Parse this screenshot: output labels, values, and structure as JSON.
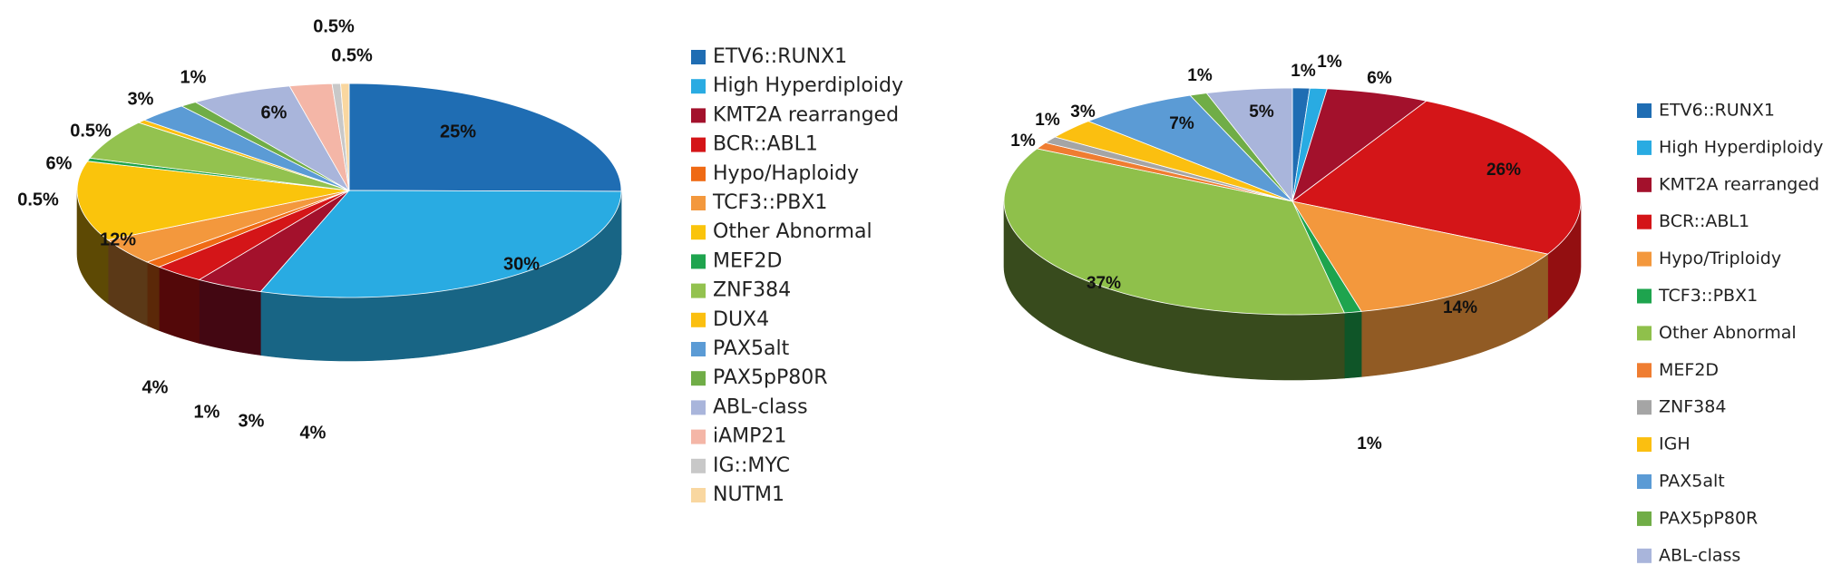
{
  "chart_data": [
    {
      "type": "pie",
      "style": "3d",
      "legend_position": "right",
      "slices": [
        {
          "name": "ETV6::RUNX1",
          "label": "25%",
          "value": 25,
          "color": "#1f6db3"
        },
        {
          "name": "High Hyperdiploidy",
          "label": "30%",
          "value": 30,
          "color": "#29abe2"
        },
        {
          "name": "KMT2A rearranged",
          "label": "4%",
          "value": 4,
          "color": "#a3112c"
        },
        {
          "name": "BCR::ABL1",
          "label": "3%",
          "value": 3,
          "color": "#d41518"
        },
        {
          "name": "Hypo/Haploidy",
          "label": "1%",
          "value": 1,
          "color": "#ef6a14"
        },
        {
          "name": "TCF3::PBX1",
          "label": "4%",
          "value": 4,
          "color": "#f3983d"
        },
        {
          "name": "Other Abnormal",
          "label": "12%",
          "value": 12,
          "color": "#fac40c"
        },
        {
          "name": "MEF2D",
          "label": "0.5%",
          "value": 0.5,
          "color": "#1ea44e"
        },
        {
          "name": "ZNF384",
          "label": "6%",
          "value": 6,
          "color": "#93c24f"
        },
        {
          "name": "DUX4",
          "label": "0.5%",
          "value": 0.5,
          "color": "#fbbf10"
        },
        {
          "name": "PAX5alt",
          "label": "3%",
          "value": 3,
          "color": "#5b9bd5"
        },
        {
          "name": "PAX5pP80R",
          "label": "1%",
          "value": 1,
          "color": "#70ad47"
        },
        {
          "name": "ABL-class",
          "label": "6%",
          "value": 6,
          "color": "#a9b5db"
        },
        {
          "name": "iAMP21",
          "label": "",
          "value": 2.5,
          "color": "#f4b6a7"
        },
        {
          "name": "IG::MYC",
          "label": "0.5%",
          "value": 0.5,
          "color": "#c8c8c8"
        },
        {
          "name": "NUTM1",
          "label": "0.5%",
          "value": 0.5,
          "color": "#f9d7a0"
        }
      ]
    },
    {
      "type": "pie",
      "style": "3d",
      "legend_position": "right",
      "slices": [
        {
          "name": "ETV6::RUNX1",
          "label": "1%",
          "value": 1,
          "color": "#1f6db3"
        },
        {
          "name": "High Hyperdiploidy",
          "label": "1%",
          "value": 1,
          "color": "#29abe2"
        },
        {
          "name": "KMT2A rearranged",
          "label": "6%",
          "value": 6,
          "color": "#a3112c"
        },
        {
          "name": "BCR::ABL1",
          "label": "26%",
          "value": 26,
          "color": "#d41518"
        },
        {
          "name": "Hypo/Triploidy",
          "label": "14%",
          "value": 14,
          "color": "#f3983d"
        },
        {
          "name": "TCF3::PBX1",
          "label": "1%",
          "value": 1,
          "color": "#1ea44e"
        },
        {
          "name": "Other Abnormal",
          "label": "37%",
          "value": 37,
          "color": "#8fc04b"
        },
        {
          "name": "MEF2D",
          "label": "1%",
          "value": 1,
          "color": "#ef7d31"
        },
        {
          "name": "ZNF384",
          "label": "1%",
          "value": 1,
          "color": "#a5a5a5"
        },
        {
          "name": "IGH",
          "label": "3%",
          "value": 3,
          "color": "#fbbf10"
        },
        {
          "name": "PAX5alt",
          "label": "7%",
          "value": 7,
          "color": "#5b9bd5"
        },
        {
          "name": "PAX5pP80R",
          "label": "1%",
          "value": 1,
          "color": "#70ad47"
        },
        {
          "name": "ABL-class",
          "label": "5%",
          "value": 5,
          "color": "#a9b5db"
        }
      ]
    }
  ]
}
